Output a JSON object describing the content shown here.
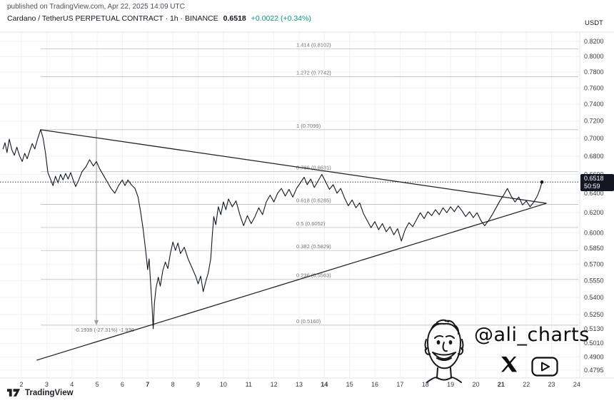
{
  "header": {
    "published_line": "published on TradingView.com, Apr 22, 2025 14:09 UTC",
    "symbol_line": "Cardano / TetherUS PERPETUAL CONTRACT · 1h · BINANCE",
    "price": "0.6518",
    "change": "+0.0022 (+0.34%)",
    "quote_currency": "USDT"
  },
  "price_badge": {
    "price": "0.6518",
    "countdown": "50:59"
  },
  "logo": {
    "text": "TradingView"
  },
  "watermark": {
    "handle": "@ali_charts",
    "icons": [
      "x-logo",
      "youtube-logo",
      "face-drawing"
    ]
  },
  "colors": {
    "up": "#089981",
    "line": "#131722",
    "grid": "#f1f2f4",
    "border": "#e0e3eb",
    "fib": "#b0b3ba",
    "fib_text": "#70737d",
    "axis_text": "#363a45",
    "badge_bg": "#131722"
  },
  "chart_data": {
    "type": "line",
    "title": "Cardano / TetherUS PERPETUAL CONTRACT 1h BINANCE",
    "x_unit": "day of April 2025",
    "y_scale": "log",
    "last_price": 0.6518,
    "x_ticks": [
      2,
      3,
      4,
      5,
      6,
      7,
      8,
      9,
      10,
      11,
      12,
      13,
      14,
      15,
      16,
      17,
      18,
      19,
      20,
      21,
      22,
      23,
      24
    ],
    "bold_x_ticks": [
      7,
      14,
      21
    ],
    "y_ticks": [
      "0.8200",
      "0.8000",
      "0.7800",
      "0.7600",
      "0.7400",
      "0.7200",
      "0.7000",
      "0.6800",
      "0.6600",
      "0.6400",
      "0.6200",
      "0.6000",
      "0.5850",
      "0.5700",
      "0.5550",
      "0.5400",
      "0.5250",
      "0.5130",
      "0.5010",
      "0.4900",
      "0.4795"
    ],
    "fib_levels": [
      {
        "label": "1.414 (0.8102)",
        "price": 0.8102
      },
      {
        "label": "1.272 (0.7742)",
        "price": 0.7742
      },
      {
        "label": "1 (0.7099)",
        "price": 0.7099
      },
      {
        "label": "0.786 (0.6631)",
        "price": 0.6631
      },
      {
        "label": "0.618 (0.6285)",
        "price": 0.6285
      },
      {
        "label": "0.5 (0.6052)",
        "price": 0.6052
      },
      {
        "label": "0.382 (0.5829)",
        "price": 0.5829
      },
      {
        "label": "0.236 (0.5563)",
        "price": 0.5563
      },
      {
        "label": "0 (0.5160)",
        "price": 0.516
      }
    ],
    "trendlines": [
      {
        "name": "upper",
        "from": [
          2.76,
          0.7099
        ],
        "to": [
          22.8,
          0.6296
        ]
      },
      {
        "name": "lower",
        "from": [
          2.6,
          0.4873
        ],
        "to": [
          22.8,
          0.6296
        ]
      }
    ],
    "measurement": {
      "label": "-0.1939 (-27.31%) -1.936",
      "x_day": 4.97,
      "from_price": 0.7099,
      "to_price": 0.516
    },
    "series": [
      {
        "name": "ADAUSDT.P close",
        "points": [
          [
            1.27,
            0.688
          ],
          [
            1.35,
            0.695
          ],
          [
            1.43,
            0.684
          ],
          [
            1.52,
            0.699
          ],
          [
            1.62,
            0.687
          ],
          [
            1.72,
            0.681
          ],
          [
            1.82,
            0.69
          ],
          [
            1.93,
            0.68
          ],
          [
            2.03,
            0.674
          ],
          [
            2.13,
            0.683
          ],
          [
            2.23,
            0.677
          ],
          [
            2.33,
            0.686
          ],
          [
            2.43,
            0.694
          ],
          [
            2.53,
            0.688
          ],
          [
            2.64,
            0.699
          ],
          [
            2.76,
            0.71
          ],
          [
            2.86,
            0.7
          ],
          [
            2.95,
            0.684
          ],
          [
            3.05,
            0.662
          ],
          [
            3.15,
            0.655
          ],
          [
            3.25,
            0.648
          ],
          [
            3.35,
            0.658
          ],
          [
            3.45,
            0.651
          ],
          [
            3.55,
            0.66
          ],
          [
            3.65,
            0.654
          ],
          [
            3.75,
            0.661
          ],
          [
            3.85,
            0.655
          ],
          [
            3.95,
            0.662
          ],
          [
            4.05,
            0.654
          ],
          [
            4.15,
            0.647
          ],
          [
            4.27,
            0.654
          ],
          [
            4.4,
            0.663
          ],
          [
            4.55,
            0.668
          ],
          [
            4.7,
            0.676
          ],
          [
            4.85,
            0.669
          ],
          [
            4.97,
            0.674
          ],
          [
            5.1,
            0.666
          ],
          [
            5.25,
            0.659
          ],
          [
            5.4,
            0.652
          ],
          [
            5.55,
            0.645
          ],
          [
            5.7,
            0.64
          ],
          [
            5.85,
            0.648
          ],
          [
            6.0,
            0.654
          ],
          [
            6.1,
            0.648
          ],
          [
            6.22,
            0.654
          ],
          [
            6.35,
            0.649
          ],
          [
            6.5,
            0.645
          ],
          [
            6.62,
            0.636
          ],
          [
            6.72,
            0.621
          ],
          [
            6.82,
            0.604
          ],
          [
            6.92,
            0.583
          ],
          [
            7.0,
            0.565
          ],
          [
            7.06,
            0.575
          ],
          [
            7.12,
            0.552
          ],
          [
            7.17,
            0.534
          ],
          [
            7.22,
            0.513
          ],
          [
            7.27,
            0.535
          ],
          [
            7.33,
            0.548
          ],
          [
            7.42,
            0.558
          ],
          [
            7.5,
            0.55
          ],
          [
            7.6,
            0.564
          ],
          [
            7.7,
            0.572
          ],
          [
            7.8,
            0.566
          ],
          [
            7.9,
            0.58
          ],
          [
            8.0,
            0.591
          ],
          [
            8.1,
            0.583
          ],
          [
            8.2,
            0.59
          ],
          [
            8.3,
            0.58
          ],
          [
            8.45,
            0.586
          ],
          [
            8.6,
            0.575
          ],
          [
            8.75,
            0.567
          ],
          [
            8.9,
            0.559
          ],
          [
            9.0,
            0.552
          ],
          [
            9.1,
            0.559
          ],
          [
            9.2,
            0.545
          ],
          [
            9.3,
            0.554
          ],
          [
            9.4,
            0.562
          ],
          [
            9.5,
            0.575
          ],
          [
            9.56,
            0.597
          ],
          [
            9.62,
            0.616
          ],
          [
            9.7,
            0.608
          ],
          [
            9.8,
            0.626
          ],
          [
            9.9,
            0.618
          ],
          [
            10.0,
            0.631
          ],
          [
            10.1,
            0.623
          ],
          [
            10.2,
            0.634
          ],
          [
            10.35,
            0.626
          ],
          [
            10.5,
            0.632
          ],
          [
            10.65,
            0.618
          ],
          [
            10.8,
            0.607
          ],
          [
            10.95,
            0.617
          ],
          [
            11.1,
            0.609
          ],
          [
            11.25,
            0.616
          ],
          [
            11.4,
            0.625
          ],
          [
            11.55,
            0.618
          ],
          [
            11.7,
            0.631
          ],
          [
            11.85,
            0.638
          ],
          [
            12.0,
            0.631
          ],
          [
            12.15,
            0.64
          ],
          [
            12.3,
            0.645
          ],
          [
            12.45,
            0.637
          ],
          [
            12.6,
            0.644
          ],
          [
            12.75,
            0.636
          ],
          [
            12.9,
            0.645
          ],
          [
            13.05,
            0.651
          ],
          [
            13.2,
            0.657
          ],
          [
            13.32,
            0.649
          ],
          [
            13.46,
            0.655
          ],
          [
            13.6,
            0.646
          ],
          [
            13.75,
            0.653
          ],
          [
            13.9,
            0.66
          ],
          [
            14.05,
            0.652
          ],
          [
            14.2,
            0.644
          ],
          [
            14.35,
            0.649
          ],
          [
            14.5,
            0.64
          ],
          [
            14.65,
            0.645
          ],
          [
            14.8,
            0.635
          ],
          [
            14.95,
            0.627
          ],
          [
            15.1,
            0.633
          ],
          [
            15.25,
            0.625
          ],
          [
            15.4,
            0.63
          ],
          [
            15.55,
            0.619
          ],
          [
            15.7,
            0.612
          ],
          [
            15.85,
            0.605
          ],
          [
            16.0,
            0.611
          ],
          [
            16.15,
            0.603
          ],
          [
            16.3,
            0.609
          ],
          [
            16.45,
            0.601
          ],
          [
            16.6,
            0.606
          ],
          [
            16.75,
            0.598
          ],
          [
            16.9,
            0.604
          ],
          [
            17.05,
            0.592
          ],
          [
            17.2,
            0.603
          ],
          [
            17.35,
            0.61
          ],
          [
            17.5,
            0.606
          ],
          [
            17.65,
            0.613
          ],
          [
            17.8,
            0.62
          ],
          [
            17.95,
            0.614
          ],
          [
            18.1,
            0.621
          ],
          [
            18.25,
            0.617
          ],
          [
            18.4,
            0.623
          ],
          [
            18.55,
            0.618
          ],
          [
            18.7,
            0.625
          ],
          [
            18.85,
            0.62
          ],
          [
            19.0,
            0.626
          ],
          [
            19.15,
            0.621
          ],
          [
            19.3,
            0.627
          ],
          [
            19.45,
            0.622
          ],
          [
            19.6,
            0.616
          ],
          [
            19.75,
            0.621
          ],
          [
            19.9,
            0.615
          ],
          [
            20.05,
            0.62
          ],
          [
            20.2,
            0.612
          ],
          [
            20.35,
            0.607
          ],
          [
            20.5,
            0.612
          ],
          [
            20.65,
            0.618
          ],
          [
            20.8,
            0.625
          ],
          [
            20.95,
            0.632
          ],
          [
            21.1,
            0.638
          ],
          [
            21.25,
            0.645
          ],
          [
            21.4,
            0.637
          ],
          [
            21.55,
            0.631
          ],
          [
            21.7,
            0.636
          ],
          [
            21.85,
            0.628
          ],
          [
            22.0,
            0.632
          ],
          [
            22.15,
            0.626
          ],
          [
            22.3,
            0.631
          ],
          [
            22.45,
            0.638
          ],
          [
            22.55,
            0.645
          ],
          [
            22.62,
            0.6518
          ]
        ]
      }
    ]
  }
}
